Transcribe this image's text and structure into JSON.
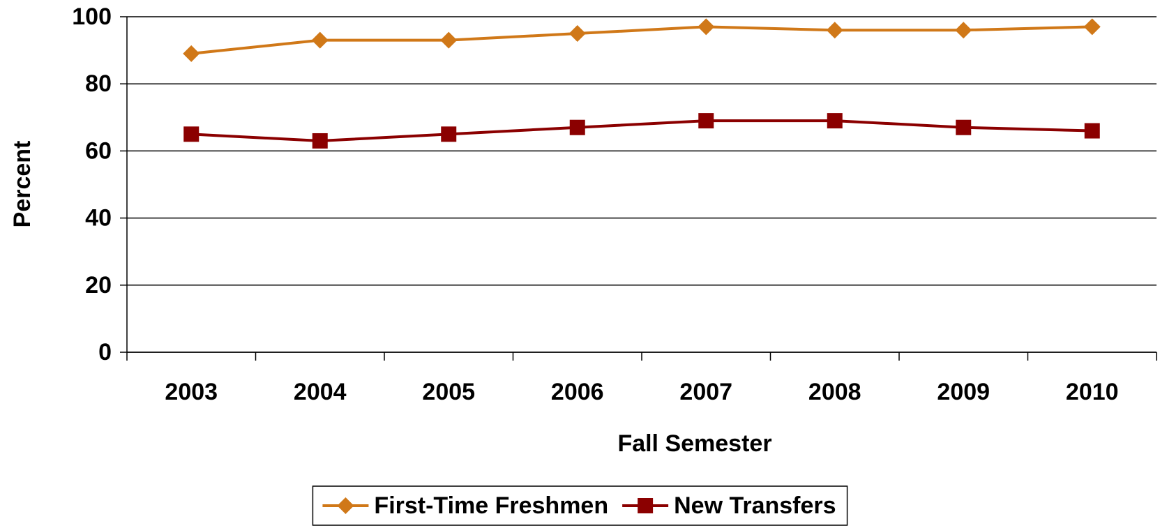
{
  "chart_data": {
    "type": "line",
    "x_label": "Fall Semester",
    "y_label": "Percent",
    "categories": [
      "2003",
      "2004",
      "2005",
      "2006",
      "2007",
      "2008",
      "2009",
      "2010"
    ],
    "series": [
      {
        "name": "First-Time Freshmen",
        "color": "#d07818",
        "marker": "diamond",
        "values": [
          89,
          93,
          93,
          95,
          97,
          96,
          96,
          97
        ]
      },
      {
        "name": "New Transfers",
        "color": "#8b0000",
        "marker": "square",
        "values": [
          65,
          63,
          65,
          67,
          69,
          69,
          67,
          66
        ]
      }
    ],
    "ylim": [
      0,
      100
    ],
    "yticks": [
      0,
      20,
      40,
      60,
      80,
      100
    ],
    "grid": true,
    "legend": "bottom"
  }
}
